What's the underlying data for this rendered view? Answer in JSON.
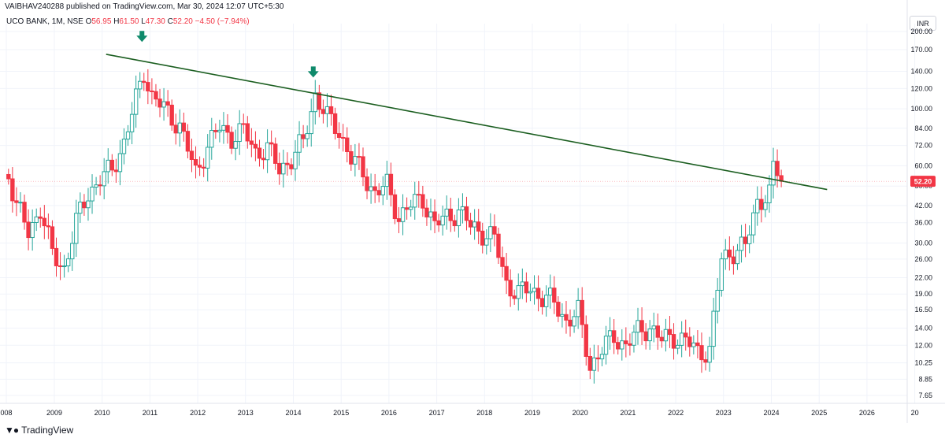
{
  "header": {
    "publisher": "VAIBHAV240288 published on TradingView.com, Mar 30, 2024 12:07 UTC+5:30"
  },
  "symbol": {
    "name": "UCO BANK, 1M, NSE",
    "open_label": "O",
    "open": "56.95",
    "high_label": "H",
    "high": "61.50",
    "low_label": "L",
    "low": "47.30",
    "close_label": "C",
    "close": "52.20",
    "change": "−4.50 (−7.94%)"
  },
  "currency": "INR",
  "price_badge": "52.20",
  "footer": {
    "brand": "TradingView"
  },
  "colors": {
    "up": "#26a69a",
    "down": "#f23645",
    "trendline": "#1b5e20",
    "arrow": "#0f8a6b",
    "grid": "#f0f3fa"
  },
  "chart_data": {
    "type": "candlestick",
    "scale": "log",
    "y_ticks": [
      "200.00",
      "170.00",
      "140.00",
      "120.00",
      "100.00",
      "84.00",
      "72.00",
      "60.00",
      "50.00",
      "42.00",
      "36.00",
      "30.00",
      "26.00",
      "22.00",
      "19.00",
      "16.50",
      "14.00",
      "12.00",
      "10.25",
      "8.85",
      "7.65"
    ],
    "x_ticks": [
      "008",
      "2009",
      "2010",
      "2011",
      "2012",
      "2013",
      "2014",
      "2015",
      "2016",
      "2017",
      "2018",
      "2019",
      "2020",
      "2021",
      "2022",
      "2023",
      "2024",
      "2025",
      "2026",
      "20"
    ],
    "last_close": 52.2,
    "trendline": {
      "from": {
        "date": "2010-02",
        "price": 163
      },
      "to": {
        "date": "2025-03",
        "price": 48.5
      }
    },
    "annotations": [
      {
        "type": "down-arrow",
        "date": "2010-11",
        "price": 165
      },
      {
        "type": "down-arrow",
        "date": "2014-06",
        "price": 120
      }
    ],
    "anchors": [
      [
        "2008-01",
        56
      ],
      [
        "2008-03",
        42
      ],
      [
        "2008-06",
        33
      ],
      [
        "2008-09",
        41
      ],
      [
        "2008-12",
        27
      ],
      [
        "2009-03",
        24
      ],
      [
        "2009-06",
        36
      ],
      [
        "2009-09",
        47
      ],
      [
        "2009-12",
        53
      ],
      [
        "2010-03",
        58
      ],
      [
        "2010-06",
        74
      ],
      [
        "2010-09",
        108
      ],
      [
        "2010-11",
        140
      ],
      [
        "2011-01",
        112
      ],
      [
        "2011-04",
        100
      ],
      [
        "2011-08",
        86
      ],
      [
        "2011-12",
        56
      ],
      [
        "2012-03",
        72
      ],
      [
        "2012-06",
        84
      ],
      [
        "2012-09",
        78
      ],
      [
        "2012-12",
        82
      ],
      [
        "2013-03",
        68
      ],
      [
        "2013-06",
        70
      ],
      [
        "2013-09",
        58
      ],
      [
        "2013-12",
        64
      ],
      [
        "2014-03",
        74
      ],
      [
        "2014-06",
        114
      ],
      [
        "2014-09",
        92
      ],
      [
        "2014-12",
        82
      ],
      [
        "2015-03",
        64
      ],
      [
        "2015-06",
        56
      ],
      [
        "2015-09",
        47
      ],
      [
        "2015-12",
        50
      ],
      [
        "2016-03",
        38
      ],
      [
        "2016-06",
        42
      ],
      [
        "2016-09",
        45
      ],
      [
        "2016-12",
        35
      ],
      [
        "2017-03",
        38
      ],
      [
        "2017-06",
        40
      ],
      [
        "2017-09",
        35
      ],
      [
        "2017-12",
        33
      ],
      [
        "2018-03",
        31
      ],
      [
        "2018-06",
        21
      ],
      [
        "2018-09",
        19
      ],
      [
        "2018-12",
        20
      ],
      [
        "2019-03",
        18.5
      ],
      [
        "2019-06",
        17.5
      ],
      [
        "2019-09",
        15
      ],
      [
        "2019-12",
        16
      ],
      [
        "2020-03",
        10
      ],
      [
        "2020-06",
        11.5
      ],
      [
        "2020-09",
        13
      ],
      [
        "2020-12",
        12
      ],
      [
        "2021-03",
        13.5
      ],
      [
        "2021-06",
        14.2
      ],
      [
        "2021-09",
        12.5
      ],
      [
        "2021-12",
        13
      ],
      [
        "2022-03",
        12.5
      ],
      [
        "2022-06",
        11.3
      ],
      [
        "2022-09",
        11.5
      ],
      [
        "2022-12",
        26
      ],
      [
        "2023-03",
        28
      ],
      [
        "2023-06",
        29
      ],
      [
        "2023-09",
        44
      ],
      [
        "2023-12",
        46
      ],
      [
        "2024-01",
        58
      ],
      [
        "2024-02",
        57
      ],
      [
        "2024-03",
        52.2
      ]
    ]
  }
}
